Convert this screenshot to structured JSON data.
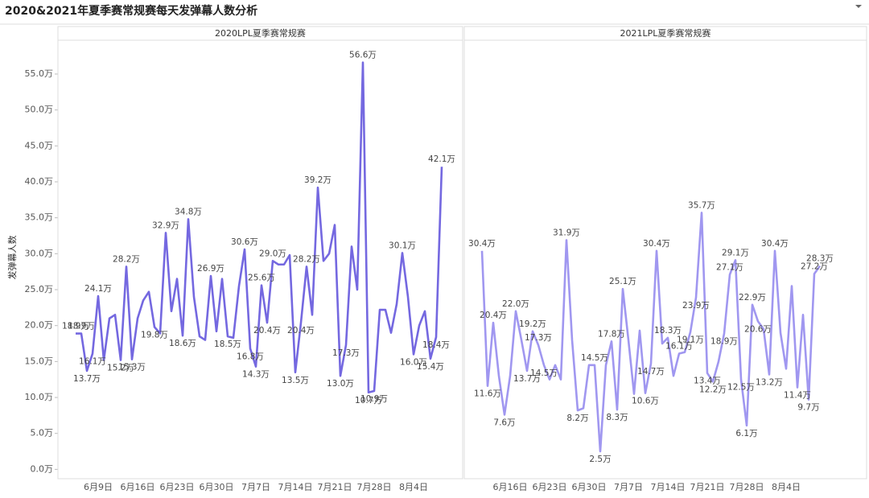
{
  "chart_data": {
    "type": "line",
    "title": "2020&2021年夏季赛常规赛每天发弹幕人数分析",
    "y_label": "发弹幕人数",
    "ylim": [
      -1.3,
      59.7
    ],
    "yticks": [
      {
        "value": 0,
        "label": "0.0万"
      },
      {
        "value": 5,
        "label": "5.0万"
      },
      {
        "value": 10,
        "label": "10.0万"
      },
      {
        "value": 15,
        "label": "15.0万"
      },
      {
        "value": 20,
        "label": "20.0万"
      },
      {
        "value": 25,
        "label": "25.0万"
      },
      {
        "value": 30,
        "label": "30.0万"
      },
      {
        "value": 35,
        "label": "35.0万"
      },
      {
        "value": 40,
        "label": "40.0万"
      },
      {
        "value": 45,
        "label": "45.0万"
      },
      {
        "value": 50,
        "label": "50.0万"
      },
      {
        "value": 55,
        "label": "55.0万"
      }
    ],
    "panels": [
      {
        "title": "2020LPL夏季赛常规赛",
        "color": "#7468e0",
        "categories": [
          null,
          null,
          null,
          null,
          "6月9日",
          null,
          null,
          null,
          null,
          null,
          null,
          "6月16日",
          null,
          null,
          null,
          null,
          null,
          null,
          "6月23日",
          null,
          null,
          null,
          null,
          null,
          null,
          "6月30日",
          null,
          null,
          null,
          null,
          null,
          null,
          "7月7日",
          null,
          null,
          null,
          null,
          null,
          null,
          "7月14日",
          null,
          null,
          null,
          null,
          null,
          null,
          "7月21日",
          null,
          null,
          null,
          null,
          null,
          null,
          "7月28日",
          null,
          null,
          null,
          null,
          null,
          null,
          "8月4日",
          null,
          null,
          null,
          null,
          null
        ],
        "values": [
          18.9,
          18.9,
          13.7,
          16.1,
          24.1,
          15.2,
          21,
          21.5,
          15.2,
          28.2,
          15.3,
          21,
          23.5,
          24.7,
          19.8,
          18.9,
          32.9,
          22,
          26.5,
          18.6,
          34.8,
          24,
          18.5,
          18,
          26.9,
          19.2,
          26.5,
          18.5,
          18.3,
          25.5,
          30.6,
          16.8,
          14.3,
          25.6,
          20.4,
          29.0,
          28.5,
          28.5,
          29.8,
          13.5,
          20.4,
          28.2,
          21.5,
          39.2,
          29,
          30,
          34,
          13.0,
          17.3,
          31,
          25,
          56.6,
          10.7,
          10.9,
          22.2,
          22.2,
          19,
          23,
          30.1,
          24,
          16.0,
          20,
          22,
          15.4,
          18.4,
          42.1
        ],
        "value_labels": [
          "18.9万",
          "18.9万",
          "13.7万",
          "16.1万",
          "24.1万",
          null,
          null,
          null,
          "15.2万",
          "28.2万",
          "15.3万",
          null,
          null,
          null,
          "19.8万",
          null,
          "32.9万",
          null,
          null,
          "18.6万",
          "34.8万",
          null,
          null,
          null,
          "26.9万",
          null,
          null,
          "18.5万",
          null,
          null,
          "30.6万",
          "16.8万",
          "14.3万",
          "25.6万",
          "20.4万",
          "29.0万",
          null,
          null,
          null,
          "13.5万",
          "20.4万",
          "28.2万",
          null,
          "39.2万",
          null,
          null,
          null,
          "13.0万",
          "17.3万",
          null,
          null,
          "56.6万",
          "10.7万",
          "10.9万",
          null,
          null,
          null,
          null,
          "30.1万",
          null,
          "16.0万",
          null,
          null,
          "15.4万",
          "18.4万",
          "42.1万"
        ]
      },
      {
        "title": "2021LPL夏季赛常规赛",
        "color": "#a097f0",
        "categories": [
          null,
          null,
          null,
          null,
          null,
          "6月16日",
          null,
          null,
          null,
          null,
          null,
          null,
          "6月23日",
          null,
          null,
          null,
          null,
          null,
          null,
          "6月30日",
          null,
          null,
          null,
          null,
          null,
          null,
          "7月7日",
          null,
          null,
          null,
          null,
          null,
          null,
          "7月14日",
          null,
          null,
          null,
          null,
          null,
          null,
          "7月21日",
          null,
          null,
          null,
          null,
          null,
          null,
          "7月28日",
          null,
          null,
          null,
          null,
          null,
          null,
          "8月4日",
          null,
          null,
          null,
          null,
          null,
          null
        ],
        "values": [
          30.4,
          11.6,
          20.4,
          13,
          7.6,
          13,
          22.0,
          18,
          13.7,
          19.2,
          17.3,
          14.5,
          12.5,
          14.5,
          12.5,
          31.9,
          18,
          8.2,
          8.5,
          14.5,
          14.5,
          2.5,
          14.5,
          17.8,
          8.3,
          25.1,
          18,
          10.5,
          19.3,
          10.6,
          14.7,
          30.4,
          17.5,
          18.3,
          13,
          16.1,
          16.3,
          19.1,
          23.9,
          35.7,
          13.4,
          12.2,
          15,
          18.9,
          27.1,
          29.1,
          12.5,
          6.1,
          22.9,
          20.6,
          19.5,
          13.2,
          30.4,
          19,
          14,
          25.5,
          11.4,
          21.5,
          9.7,
          27.2,
          28.3
        ],
        "value_labels": [
          "30.4万",
          "11.6万",
          "20.4万",
          null,
          "7.6万",
          null,
          "22.0万",
          null,
          "13.7万",
          "19.2万",
          "17.3万",
          "14.5万",
          null,
          null,
          null,
          "31.9万",
          null,
          "8.2万",
          null,
          null,
          "14.5万",
          "2.5万",
          null,
          "17.8万",
          "8.3万",
          "25.1万",
          null,
          null,
          null,
          "10.6万",
          "14.7万",
          "30.4万",
          null,
          "18.3万",
          null,
          "16.1万",
          null,
          "19.1万",
          "23.9万",
          "35.7万",
          "13.4万",
          "12.2万",
          null,
          "18.9万",
          "27.1万",
          "29.1万",
          "12.5万",
          "6.1万",
          "22.9万",
          "20.6万",
          null,
          "13.2万",
          "30.4万",
          null,
          null,
          null,
          "11.4万",
          null,
          "9.7万",
          "27.2万",
          "28.3万"
        ]
      }
    ]
  }
}
